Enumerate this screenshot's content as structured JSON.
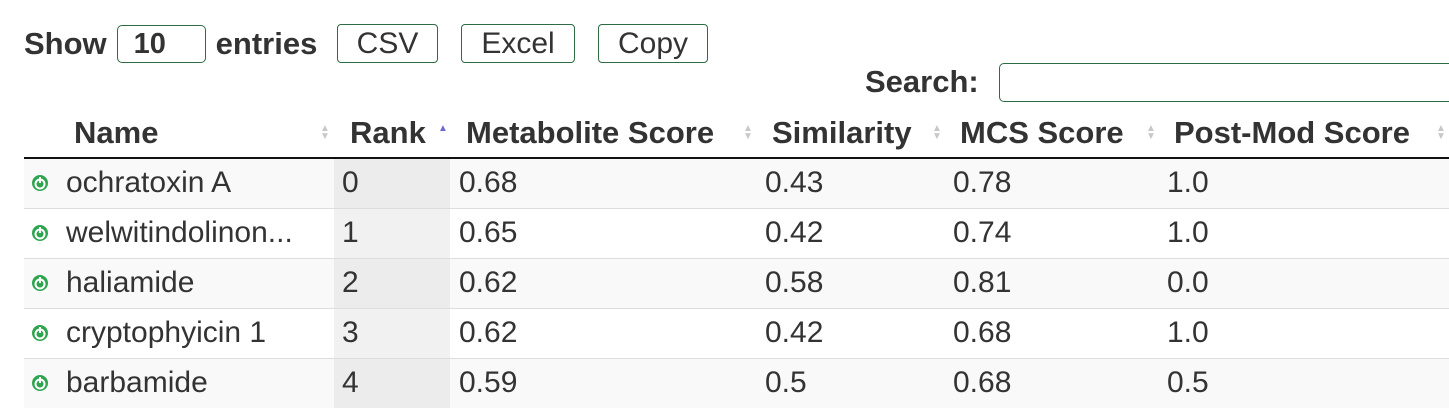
{
  "controls": {
    "show_label": "Show",
    "page_length": "10",
    "entries_label": "entries",
    "export_buttons": [
      "CSV",
      "Excel",
      "Copy"
    ],
    "search_label": "Search:",
    "search_value": ""
  },
  "table": {
    "columns": [
      "Name",
      "Rank",
      "Metabolite Score",
      "Similarity",
      "MCS Score",
      "Post-Mod Score"
    ],
    "sorted_column": "Rank",
    "sort_direction": "ascending",
    "rows": [
      {
        "name": "ochratoxin A",
        "rank": "0",
        "metabolite_score": "0.68",
        "similarity": "0.43",
        "mcs_score": "0.78",
        "post_mod_score": "1.0"
      },
      {
        "name": "welwitindolinon...",
        "rank": "1",
        "metabolite_score": "0.65",
        "similarity": "0.42",
        "mcs_score": "0.74",
        "post_mod_score": "1.0"
      },
      {
        "name": "haliamide",
        "rank": "2",
        "metabolite_score": "0.62",
        "similarity": "0.58",
        "mcs_score": "0.81",
        "post_mod_score": "0.0"
      },
      {
        "name": "cryptophyicin 1",
        "rank": "3",
        "metabolite_score": "0.62",
        "similarity": "0.42",
        "mcs_score": "0.68",
        "post_mod_score": "1.0"
      },
      {
        "name": "barbamide",
        "rank": "4",
        "metabolite_score": "0.59",
        "similarity": "0.5",
        "mcs_score": "0.68",
        "post_mod_score": "0.5"
      }
    ]
  },
  "colors": {
    "accent_border": "#2e6b45",
    "expand_icon": "#2ea44f",
    "sort_active": "#6b6bcf"
  },
  "icons": {
    "row_expand": "plus-circle-icon",
    "sort_both": "sort-icon",
    "sort_asc": "sort-ascending-icon"
  }
}
